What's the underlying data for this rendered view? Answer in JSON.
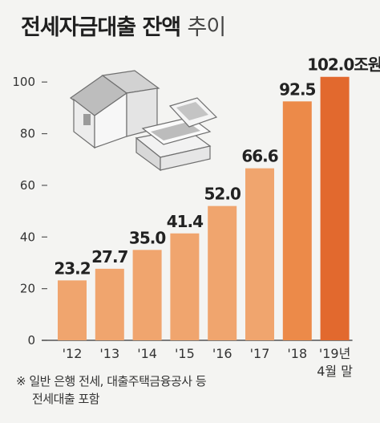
{
  "title_bold": "전세자금대출 잔액",
  "title_light": "추이",
  "footnote": [
    "※ 일반 은행 전세, 대출주택금융공사 등",
    "전세대출 포함"
  ],
  "colors": {
    "bar_light": "#f0a56e",
    "bar_mid": "#ec8a49",
    "bar_dark": "#e2692e",
    "axis": "#555555"
  },
  "chart_data": {
    "type": "bar",
    "title": "전세자금대출 잔액 추이",
    "categories": [
      "'12",
      "'13",
      "'14",
      "'15",
      "'16",
      "'17",
      "'18",
      "'19년 4월 말"
    ],
    "category_lines": [
      [
        "'12"
      ],
      [
        "'13"
      ],
      [
        "'14"
      ],
      [
        "'15"
      ],
      [
        "'16"
      ],
      [
        "'17"
      ],
      [
        "'18"
      ],
      [
        "'19년",
        "4월 말"
      ]
    ],
    "values": [
      23.2,
      27.7,
      35.0,
      41.4,
      52.0,
      66.6,
      92.5,
      102.0
    ],
    "value_labels": [
      "23.2",
      "27.7",
      "35.0",
      "41.4",
      "52.0",
      "66.6",
      "92.5",
      "102.0조원"
    ],
    "yticks": [
      0,
      20,
      40,
      60,
      80,
      100
    ],
    "ylim": [
      0,
      110
    ],
    "unit": "조원",
    "xlabel": "",
    "ylabel": "",
    "grid": false,
    "highlight_last": true
  }
}
